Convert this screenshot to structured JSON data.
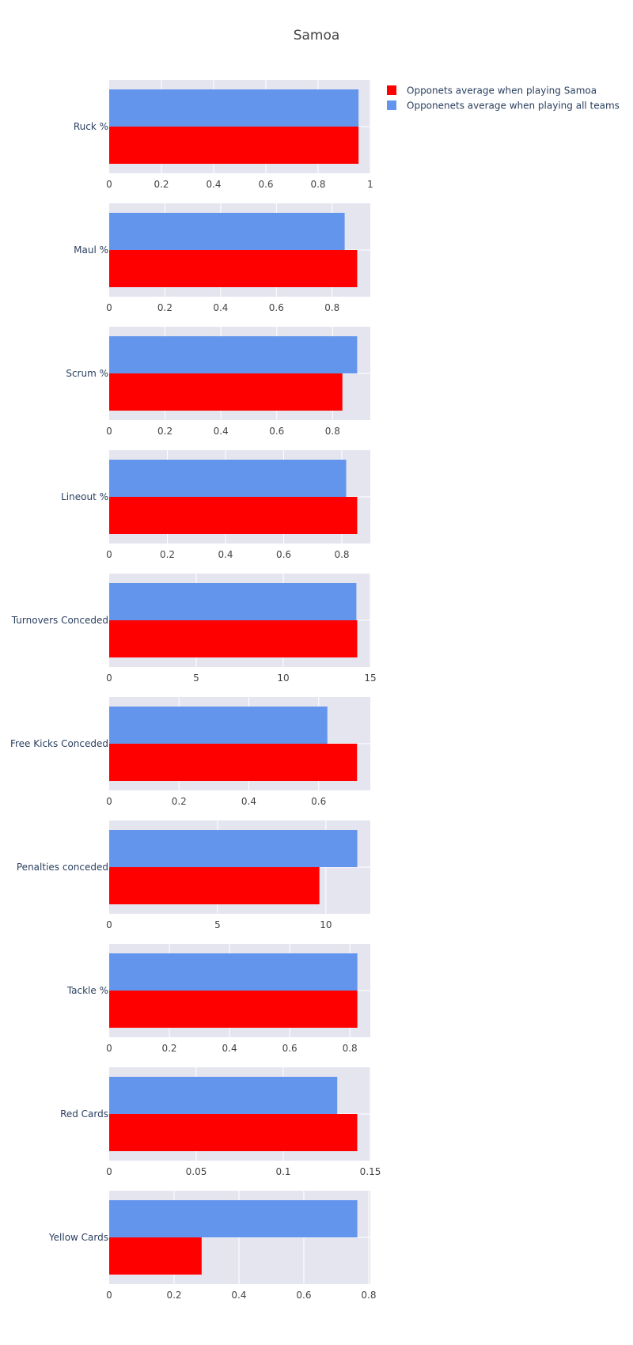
{
  "chart_data": {
    "type": "bar",
    "orientation": "horizontal",
    "title": "Samoa",
    "legend_position": "top-right",
    "legend": [
      {
        "name": "Opponets average when playing Samoa",
        "color": "#ff0000"
      },
      {
        "name": "Opponenets average when playing all teams",
        "color": "#6495ed"
      }
    ],
    "colors": {
      "samoa": "#ff0000",
      "all": "#6495ed",
      "plot_bg": "#e5e5f0",
      "grid": "#ffffff"
    },
    "subplots": [
      {
        "category": "Ruck %",
        "samoa": 0.955,
        "all": 0.955,
        "xlim": [
          0,
          1.0
        ],
        "ticks": [
          0,
          0.2,
          0.4,
          0.6,
          0.8,
          1
        ],
        "tick_labels": [
          "0",
          "0.2",
          "0.4",
          "0.6",
          "0.8",
          "1"
        ]
      },
      {
        "category": "Maul %",
        "samoa": 0.89,
        "all": 0.845,
        "xlim": [
          0,
          0.937
        ],
        "ticks": [
          0,
          0.2,
          0.4,
          0.6,
          0.8
        ],
        "tick_labels": [
          "0",
          "0.2",
          "0.4",
          "0.6",
          "0.8"
        ]
      },
      {
        "category": "Scrum %",
        "samoa": 0.835,
        "all": 0.888,
        "xlim": [
          0,
          0.935
        ],
        "ticks": [
          0,
          0.2,
          0.4,
          0.6,
          0.8
        ],
        "tick_labels": [
          "0",
          "0.2",
          "0.4",
          "0.6",
          "0.8"
        ]
      },
      {
        "category": "Lineout %",
        "samoa": 0.853,
        "all": 0.815,
        "xlim": [
          0,
          0.898
        ],
        "ticks": [
          0,
          0.2,
          0.4,
          0.6,
          0.8
        ],
        "tick_labels": [
          "0",
          "0.2",
          "0.4",
          "0.6",
          "0.8"
        ]
      },
      {
        "category": "Turnovers Conceded",
        "samoa": 14.25,
        "all": 14.2,
        "xlim": [
          0,
          15.0
        ],
        "ticks": [
          0,
          5,
          10,
          15
        ],
        "tick_labels": [
          "0",
          "5",
          "10",
          "15"
        ]
      },
      {
        "category": "Free Kicks Conceded",
        "samoa": 0.71,
        "all": 0.625,
        "xlim": [
          0,
          0.748
        ],
        "ticks": [
          0,
          0.2,
          0.4,
          0.6
        ],
        "tick_labels": [
          "0",
          "0.2",
          "0.4",
          "0.6"
        ]
      },
      {
        "category": "Penalties conceded",
        "samoa": 9.7,
        "all": 11.45,
        "xlim": [
          0,
          12.05
        ],
        "ticks": [
          0,
          5,
          10
        ],
        "tick_labels": [
          "0",
          "5",
          "10"
        ]
      },
      {
        "category": "Tackle %",
        "samoa": 0.825,
        "all": 0.825,
        "xlim": [
          0,
          0.868
        ],
        "ticks": [
          0,
          0.2,
          0.4,
          0.6,
          0.8
        ],
        "tick_labels": [
          "0",
          "0.2",
          "0.4",
          "0.6",
          "0.8"
        ]
      },
      {
        "category": "Red Cards",
        "samoa": 0.1425,
        "all": 0.131,
        "xlim": [
          0,
          0.15
        ],
        "ticks": [
          0,
          0.05,
          0.1,
          0.15
        ],
        "tick_labels": [
          "0",
          "0.05",
          "0.1",
          "0.15"
        ]
      },
      {
        "category": "Yellow Cards",
        "samoa": 0.285,
        "all": 0.765,
        "xlim": [
          0,
          0.805
        ],
        "ticks": [
          0,
          0.2,
          0.4,
          0.6,
          0.8
        ],
        "tick_labels": [
          "0",
          "0.2",
          "0.4",
          "0.6",
          "0.8"
        ]
      }
    ]
  }
}
